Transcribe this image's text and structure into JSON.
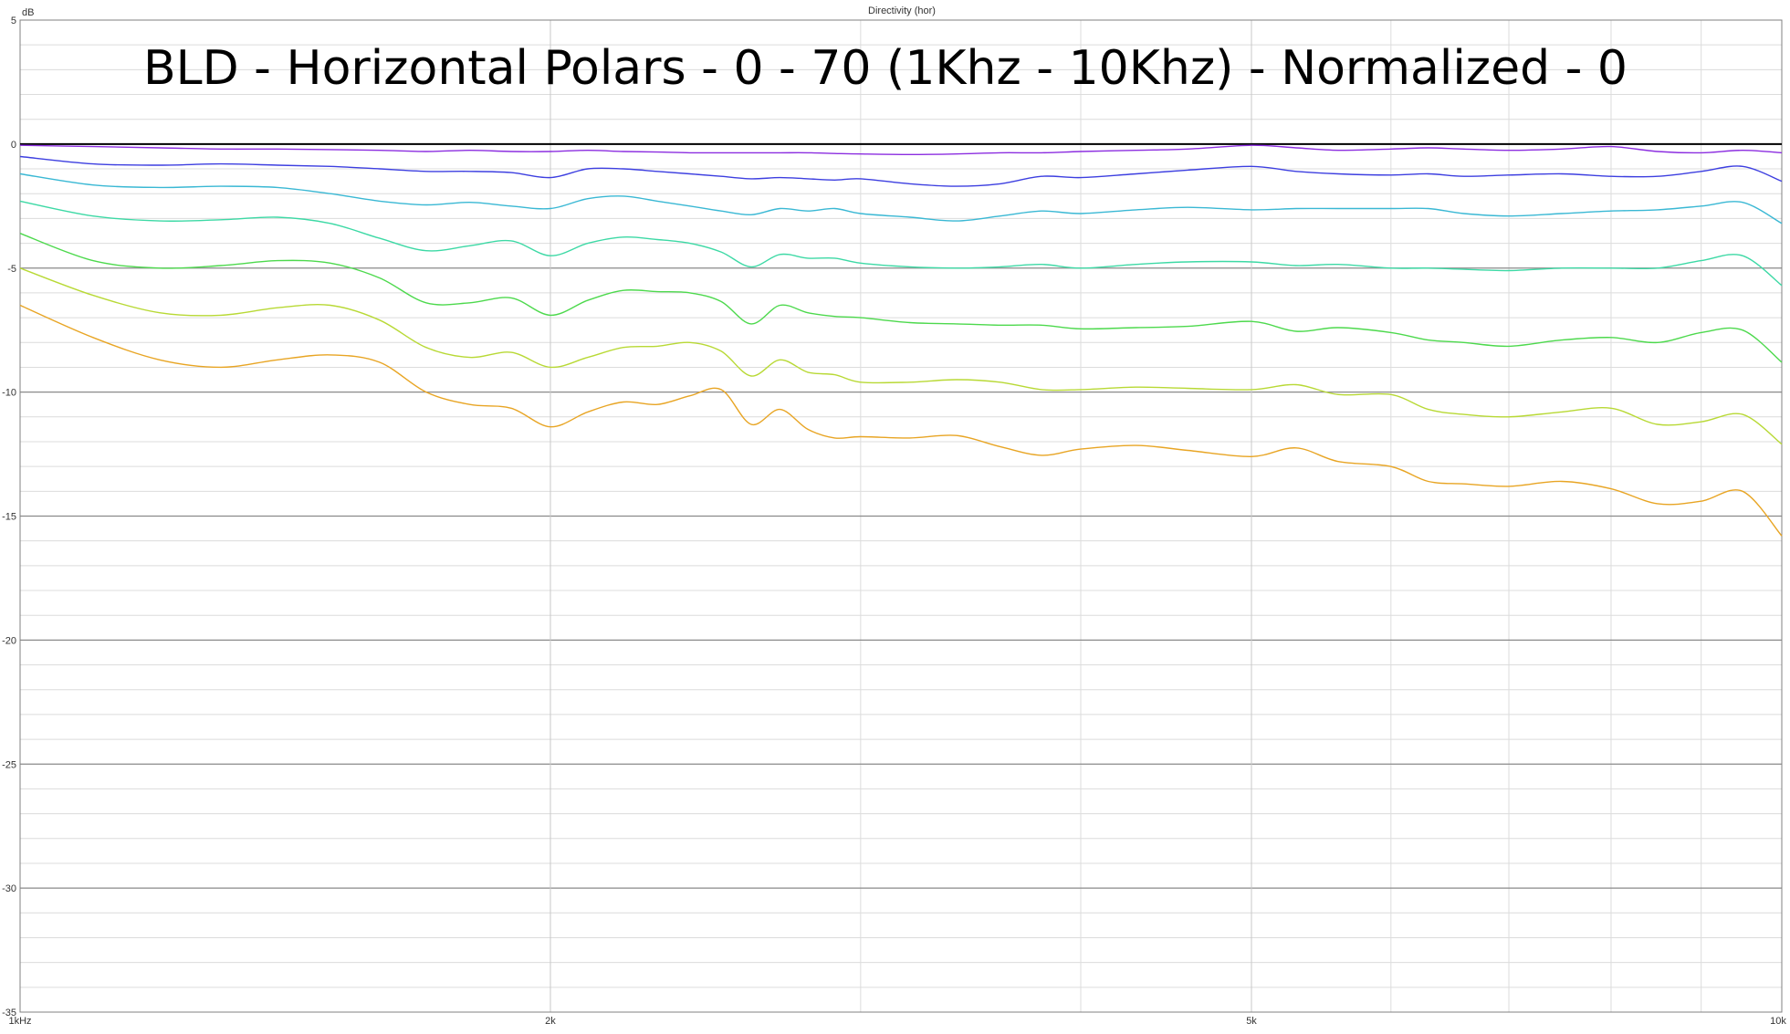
{
  "chart_data": {
    "type": "line",
    "header": "Directivity (hor)",
    "title": "BLD - Horizontal Polars - 0 - 70 (1Khz - 10Khz) - Normalized - 0",
    "ylabel": "dB",
    "xscale": "log",
    "xlim": [
      1000,
      10000
    ],
    "ylim": [
      -35,
      5
    ],
    "x_ticks": [
      {
        "value": 1000,
        "label": "1kHz"
      },
      {
        "value": 2000,
        "label": "2k"
      },
      {
        "value": 5000,
        "label": "5k"
      },
      {
        "value": 10000,
        "label": "10k"
      }
    ],
    "y_ticks": [
      {
        "value": 5,
        "label": "5"
      },
      {
        "value": 0,
        "label": "0"
      },
      {
        "value": -5,
        "label": "-5"
      },
      {
        "value": -10,
        "label": "-10"
      },
      {
        "value": -15,
        "label": "-15"
      },
      {
        "value": -20,
        "label": "-20"
      },
      {
        "value": -25,
        "label": "-25"
      },
      {
        "value": -30,
        "label": "-30"
      },
      {
        "value": -35,
        "label": "-35"
      }
    ],
    "grid": true,
    "legend": "none",
    "x": [
      1000,
      1100,
      1200,
      1300,
      1400,
      1500,
      1600,
      1700,
      1800,
      1900,
      2000,
      2100,
      2200,
      2300,
      2400,
      2500,
      2600,
      2700,
      2800,
      2900,
      3000,
      3200,
      3400,
      3600,
      3800,
      4000,
      4300,
      4600,
      5000,
      5300,
      5600,
      6000,
      6300,
      6600,
      7000,
      7500,
      8000,
      8500,
      9000,
      9500,
      10000
    ],
    "series": [
      {
        "color": "#000000",
        "values": [
          0,
          0,
          0,
          0,
          0,
          0,
          0,
          0,
          0,
          0,
          0,
          0,
          0,
          0,
          0,
          0,
          0,
          0,
          0,
          0,
          0,
          0,
          0,
          0,
          0,
          0,
          0,
          0,
          0,
          0,
          0,
          0,
          0,
          0,
          0,
          0,
          0,
          0,
          0,
          0,
          0
        ]
      },
      {
        "color": "#8c2ee0",
        "values": [
          -0.05,
          -0.1,
          -0.15,
          -0.2,
          -0.2,
          -0.22,
          -0.25,
          -0.3,
          -0.25,
          -0.3,
          -0.3,
          -0.25,
          -0.3,
          -0.32,
          -0.35,
          -0.35,
          -0.35,
          -0.35,
          -0.35,
          -0.38,
          -0.4,
          -0.42,
          -0.4,
          -0.35,
          -0.35,
          -0.3,
          -0.25,
          -0.2,
          -0.05,
          -0.15,
          -0.25,
          -0.2,
          -0.15,
          -0.2,
          -0.25,
          -0.2,
          -0.1,
          -0.3,
          -0.35,
          -0.25,
          -0.35
        ]
      },
      {
        "color": "#3d3fe0",
        "values": [
          -0.5,
          -0.8,
          -0.85,
          -0.8,
          -0.85,
          -0.9,
          -1.0,
          -1.1,
          -1.1,
          -1.15,
          -1.35,
          -1.0,
          -1.0,
          -1.1,
          -1.2,
          -1.3,
          -1.4,
          -1.35,
          -1.4,
          -1.45,
          -1.4,
          -1.6,
          -1.7,
          -1.6,
          -1.3,
          -1.35,
          -1.2,
          -1.05,
          -0.9,
          -1.1,
          -1.2,
          -1.25,
          -1.2,
          -1.3,
          -1.25,
          -1.2,
          -1.3,
          -1.3,
          -1.1,
          -0.9,
          -1.5
        ]
      },
      {
        "color": "#3ab8d4",
        "values": [
          -1.2,
          -1.65,
          -1.75,
          -1.7,
          -1.75,
          -2.0,
          -2.3,
          -2.45,
          -2.35,
          -2.5,
          -2.6,
          -2.2,
          -2.1,
          -2.3,
          -2.5,
          -2.7,
          -2.85,
          -2.6,
          -2.7,
          -2.6,
          -2.8,
          -2.95,
          -3.1,
          -2.9,
          -2.7,
          -2.8,
          -2.65,
          -2.55,
          -2.65,
          -2.6,
          -2.6,
          -2.6,
          -2.6,
          -2.8,
          -2.9,
          -2.8,
          -2.7,
          -2.65,
          -2.5,
          -2.35,
          -3.2
        ]
      },
      {
        "color": "#3dd9a5",
        "values": [
          -2.3,
          -2.9,
          -3.1,
          -3.05,
          -2.95,
          -3.2,
          -3.8,
          -4.3,
          -4.1,
          -3.9,
          -4.5,
          -4.0,
          -3.75,
          -3.85,
          -4.0,
          -4.35,
          -4.95,
          -4.45,
          -4.6,
          -4.6,
          -4.8,
          -4.95,
          -5.0,
          -4.95,
          -4.85,
          -5.0,
          -4.85,
          -4.75,
          -4.75,
          -4.9,
          -4.85,
          -5.0,
          -5.0,
          -5.05,
          -5.1,
          -5.0,
          -5.0,
          -5.0,
          -4.7,
          -4.5,
          -5.7
        ]
      },
      {
        "color": "#4dd94d",
        "values": [
          -3.6,
          -4.7,
          -5.0,
          -4.9,
          -4.7,
          -4.8,
          -5.4,
          -6.4,
          -6.4,
          -6.2,
          -6.9,
          -6.3,
          -5.9,
          -5.95,
          -6.0,
          -6.35,
          -7.25,
          -6.5,
          -6.8,
          -6.95,
          -7.0,
          -7.2,
          -7.25,
          -7.3,
          -7.3,
          -7.45,
          -7.4,
          -7.35,
          -7.15,
          -7.55,
          -7.4,
          -7.6,
          -7.9,
          -8.0,
          -8.15,
          -7.9,
          -7.8,
          -8.0,
          -7.6,
          -7.5,
          -8.8
        ]
      },
      {
        "color": "#b8d935",
        "values": [
          -5.0,
          -6.1,
          -6.8,
          -6.9,
          -6.6,
          -6.5,
          -7.1,
          -8.2,
          -8.6,
          -8.4,
          -9.0,
          -8.6,
          -8.2,
          -8.15,
          -8.0,
          -8.35,
          -9.35,
          -8.7,
          -9.2,
          -9.3,
          -9.6,
          -9.6,
          -9.5,
          -9.6,
          -9.9,
          -9.9,
          -9.8,
          -9.85,
          -9.9,
          -9.7,
          -10.1,
          -10.1,
          -10.7,
          -10.9,
          -11.0,
          -10.8,
          -10.65,
          -11.3,
          -11.2,
          -10.9,
          -12.1
        ]
      },
      {
        "color": "#e8a524",
        "values": [
          -6.5,
          -7.8,
          -8.7,
          -9.0,
          -8.7,
          -8.5,
          -8.8,
          -10.0,
          -10.5,
          -10.65,
          -11.4,
          -10.8,
          -10.4,
          -10.5,
          -10.15,
          -9.9,
          -11.3,
          -10.7,
          -11.5,
          -11.85,
          -11.8,
          -11.85,
          -11.75,
          -12.2,
          -12.55,
          -12.3,
          -12.15,
          -12.35,
          -12.6,
          -12.25,
          -12.8,
          -13.0,
          -13.6,
          -13.7,
          -13.8,
          -13.6,
          -13.9,
          -14.5,
          -14.4,
          -14.0,
          -15.8
        ]
      }
    ]
  }
}
